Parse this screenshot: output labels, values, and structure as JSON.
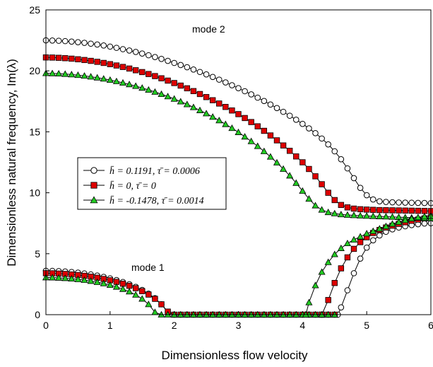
{
  "chart_data": {
    "type": "line",
    "xlabel": "Dimensionless flow velocity",
    "ylabel": "Dimensionless natural frequency, Im(λ)",
    "xlim": [
      0,
      6
    ],
    "ylim": [
      0,
      25
    ],
    "xticks": [
      "0",
      "1",
      "2",
      "3",
      "4",
      "5",
      "6"
    ],
    "yticks": [
      "0",
      "5",
      "10",
      "15",
      "20",
      "25"
    ],
    "grid": false,
    "legend_position": "middle-left",
    "annotations": [
      {
        "text": "mode 2",
        "x": 2.45,
        "y": 22.5
      },
      {
        "text": "mode 1",
        "x": 1.6,
        "y": 3.8
      }
    ],
    "series": [
      {
        "name": "h̄ = 0.1191, τ̄ = 0.0006",
        "marker": "circle",
        "marker_fill": "#ffffff",
        "color": "#000000",
        "mode2": {
          "x": [
            0,
            0.1,
            0.2,
            0.3,
            0.4,
            0.5,
            0.6,
            0.7,
            0.8,
            0.9,
            1.0,
            1.1,
            1.2,
            1.3,
            1.4,
            1.5,
            1.6,
            1.7,
            1.8,
            1.9,
            2.0,
            2.1,
            2.2,
            2.3,
            2.4,
            2.5,
            2.6,
            2.7,
            2.8,
            2.9,
            3.0,
            3.1,
            3.2,
            3.3,
            3.4,
            3.5,
            3.6,
            3.7,
            3.8,
            3.9,
            4.0,
            4.1,
            4.2,
            4.3,
            4.4,
            4.5,
            4.6,
            4.7,
            4.8,
            4.9,
            5.0,
            5.1,
            5.2,
            5.3,
            5.4,
            5.5,
            5.6,
            5.7,
            5.8,
            5.9,
            6.0
          ],
          "y": [
            22.5,
            22.49,
            22.47,
            22.44,
            22.4,
            22.35,
            22.3,
            22.23,
            22.16,
            22.08,
            21.99,
            21.89,
            21.78,
            21.67,
            21.55,
            21.42,
            21.28,
            21.13,
            20.98,
            20.82,
            20.65,
            20.48,
            20.3,
            20.11,
            19.91,
            19.71,
            19.5,
            19.28,
            19.05,
            18.82,
            18.58,
            18.33,
            18.07,
            17.8,
            17.53,
            17.24,
            16.95,
            16.64,
            16.32,
            15.99,
            15.65,
            15.28,
            14.89,
            14.45,
            13.97,
            13.4,
            12.75,
            12.0,
            11.2,
            10.4,
            9.8,
            9.45,
            9.3,
            9.25,
            9.22,
            9.2,
            9.19,
            9.18,
            9.17,
            9.16,
            9.15
          ]
        },
        "mode1": {
          "x": [
            0,
            0.1,
            0.2,
            0.3,
            0.4,
            0.5,
            0.6,
            0.7,
            0.8,
            0.9,
            1.0,
            1.1,
            1.2,
            1.3,
            1.4,
            1.5,
            1.6,
            1.7,
            1.8,
            1.9,
            2.0,
            2.1,
            2.2,
            2.3,
            2.4,
            2.5,
            2.6,
            2.7,
            2.8,
            2.9,
            3.0,
            3.1,
            3.2,
            3.3,
            3.4,
            3.5,
            3.6,
            3.7,
            3.8,
            3.9,
            4.0,
            4.1,
            4.2,
            4.3,
            4.4,
            4.5,
            4.6,
            4.7,
            4.8,
            4.9,
            5.0,
            5.1,
            5.2,
            5.3,
            5.4,
            5.5,
            5.6,
            5.7,
            5.8,
            5.9,
            6.0
          ],
          "y": [
            3.6,
            3.59,
            3.57,
            3.54,
            3.5,
            3.45,
            3.38,
            3.3,
            3.21,
            3.1,
            2.98,
            2.84,
            2.68,
            2.5,
            2.28,
            2.03,
            1.72,
            1.35,
            0.85,
            0.2,
            0,
            0,
            0,
            0,
            0,
            0,
            0,
            0,
            0,
            0,
            0,
            0,
            0,
            0,
            0,
            0,
            0,
            0,
            0,
            0,
            0,
            0,
            0,
            0,
            0,
            0,
            0,
            0,
            0,
            0,
            0,
            0,
            0,
            0,
            0,
            0,
            0,
            0,
            0,
            0,
            0
          ]
        }
      },
      {
        "name": "h̄ = 0, τ̄ = 0",
        "marker": "square",
        "marker_fill": "#dd0000",
        "color": "#000000",
        "mode2": {
          "x": [
            0,
            0.1,
            0.2,
            0.3,
            0.4,
            0.5,
            0.6,
            0.7,
            0.8,
            0.9,
            1.0,
            1.1,
            1.2,
            1.3,
            1.4,
            1.5,
            1.6,
            1.7,
            1.8,
            1.9,
            2.0,
            2.1,
            2.2,
            2.3,
            2.4,
            2.5,
            2.6,
            2.7,
            2.8,
            2.9,
            3.0,
            3.1,
            3.2,
            3.3,
            3.4,
            3.5,
            3.6,
            3.7,
            3.8,
            3.9,
            4.0,
            4.1,
            4.2,
            4.3,
            4.4,
            4.5,
            4.6,
            4.7,
            4.8,
            4.9,
            5.0,
            5.1,
            5.2,
            5.3,
            5.4,
            5.5,
            5.6,
            5.7,
            5.8,
            5.9,
            6.0
          ],
          "y": [
            21.1,
            21.09,
            21.07,
            21.04,
            21.0,
            20.95,
            20.89,
            20.82,
            20.74,
            20.65,
            20.55,
            20.44,
            20.32,
            20.19,
            20.05,
            19.9,
            19.74,
            19.57,
            19.39,
            19.2,
            19.0,
            18.79,
            18.57,
            18.34,
            18.1,
            17.85,
            17.59,
            17.32,
            17.04,
            16.75,
            16.45,
            16.13,
            15.8,
            15.45,
            15.08,
            14.7,
            14.3,
            13.88,
            13.44,
            12.98,
            12.5,
            11.95,
            11.35,
            10.7,
            10.0,
            9.4,
            9.0,
            8.8,
            8.7,
            8.65,
            8.62,
            8.6,
            8.58,
            8.57,
            8.56,
            8.55,
            8.54,
            8.53,
            8.52,
            8.51,
            8.5
          ]
        },
        "mode1": {
          "x": [
            0,
            0.1,
            0.2,
            0.3,
            0.4,
            0.5,
            0.6,
            0.7,
            0.8,
            0.9,
            1.0,
            1.1,
            1.2,
            1.3,
            1.4,
            1.5,
            1.6,
            1.7,
            1.8,
            1.9,
            2.0,
            2.1,
            2.2,
            2.3,
            2.4,
            2.5,
            2.6,
            2.7,
            2.8,
            2.9,
            3.0,
            3.1,
            3.2,
            3.3,
            3.4,
            3.5,
            3.6,
            3.7,
            3.8,
            3.9,
            4.0,
            4.1,
            4.2,
            4.3,
            4.4,
            4.5,
            4.6,
            4.7,
            4.8,
            4.9,
            5.0,
            5.1,
            5.2,
            5.3,
            5.4,
            5.5,
            5.6,
            5.7,
            5.8,
            5.9,
            6.0
          ],
          "y": [
            3.4,
            3.39,
            3.37,
            3.34,
            3.3,
            3.25,
            3.19,
            3.12,
            3.03,
            2.93,
            2.82,
            2.69,
            2.54,
            2.37,
            2.17,
            1.93,
            1.65,
            1.3,
            0.85,
            0.25,
            0,
            0,
            0,
            0,
            0,
            0,
            0,
            0,
            0,
            0,
            0,
            0,
            0,
            0,
            0,
            0,
            0,
            0,
            0,
            0,
            0,
            0,
            0,
            0,
            0,
            0,
            0,
            0,
            0,
            0,
            0,
            0,
            0,
            0,
            0,
            0,
            0,
            0,
            0,
            0,
            0
          ]
        }
      },
      {
        "name": "h̄ = -0.1478, τ̄ = 0.0014",
        "marker": "triangle",
        "marker_fill": "#22cc22",
        "color": "#000000",
        "mode2": {
          "x": [
            0,
            0.1,
            0.2,
            0.3,
            0.4,
            0.5,
            0.6,
            0.7,
            0.8,
            0.9,
            1.0,
            1.1,
            1.2,
            1.3,
            1.4,
            1.5,
            1.6,
            1.7,
            1.8,
            1.9,
            2.0,
            2.1,
            2.2,
            2.3,
            2.4,
            2.5,
            2.6,
            2.7,
            2.8,
            2.9,
            3.0,
            3.1,
            3.2,
            3.3,
            3.4,
            3.5,
            3.6,
            3.7,
            3.8,
            3.9,
            4.0,
            4.1,
            4.2,
            4.3,
            4.4,
            4.5,
            4.6,
            4.7,
            4.8,
            4.9,
            5.0,
            5.1,
            5.2,
            5.3,
            5.4,
            5.5,
            5.6,
            5.7,
            5.8,
            5.9,
            6.0
          ],
          "y": [
            19.8,
            19.79,
            19.77,
            19.74,
            19.7,
            19.65,
            19.59,
            19.52,
            19.44,
            19.35,
            19.25,
            19.14,
            19.02,
            18.89,
            18.75,
            18.6,
            18.44,
            18.27,
            18.09,
            17.9,
            17.7,
            17.48,
            17.25,
            17.01,
            16.76,
            16.5,
            16.22,
            15.93,
            15.62,
            15.3,
            14.96,
            14.6,
            14.22,
            13.82,
            13.4,
            12.95,
            12.47,
            11.95,
            11.4,
            10.8,
            10.15,
            9.5,
            8.95,
            8.6,
            8.4,
            8.3,
            8.22,
            8.18,
            8.15,
            8.12,
            8.1,
            8.08,
            8.06,
            8.04,
            8.02,
            8.0,
            7.98,
            7.96,
            7.94,
            7.92,
            7.9
          ]
        },
        "mode1": {
          "x": [
            0,
            0.1,
            0.2,
            0.3,
            0.4,
            0.5,
            0.6,
            0.7,
            0.8,
            0.9,
            1.0,
            1.1,
            1.2,
            1.3,
            1.4,
            1.5,
            1.6,
            1.7,
            1.8,
            1.9,
            2.0,
            2.1,
            2.2,
            2.3,
            2.4,
            2.5,
            2.6,
            2.7,
            2.8,
            2.9,
            3.0,
            3.1,
            3.2,
            3.3,
            3.4,
            3.5,
            3.6,
            3.7,
            3.8,
            3.9,
            4.0,
            4.1,
            4.2,
            4.3,
            4.4,
            4.5,
            4.6,
            4.7,
            4.8,
            4.9,
            5.0,
            5.1,
            5.2,
            5.3,
            5.4,
            5.5,
            5.6,
            5.7,
            5.8,
            5.9,
            6.0
          ],
          "y": [
            3.05,
            3.04,
            3.02,
            2.99,
            2.95,
            2.9,
            2.84,
            2.76,
            2.67,
            2.56,
            2.43,
            2.28,
            2.1,
            1.89,
            1.63,
            1.3,
            0.85,
            0.2,
            0,
            0,
            0,
            0,
            0,
            0,
            0,
            0,
            0,
            0,
            0,
            0,
            0,
            0,
            0,
            0,
            0,
            0,
            0,
            0,
            0,
            0,
            0,
            0,
            0,
            0,
            0,
            0,
            0,
            0,
            0,
            0,
            0,
            0,
            0,
            0,
            0,
            0,
            0,
            0,
            0,
            0,
            0
          ]
        }
      }
    ],
    "mode2_merge": {
      "note_hidden": ""
    },
    "mode1_rising": [
      {
        "x": [
          4.55,
          4.6,
          4.7,
          4.8,
          4.9,
          5.0,
          5.1,
          5.2,
          5.3,
          5.4,
          5.5,
          5.6,
          5.7,
          5.8,
          5.9,
          6.0
        ],
        "y": [
          0,
          0.6,
          2.0,
          3.4,
          4.6,
          5.5,
          6.1,
          6.5,
          6.8,
          7.0,
          7.15,
          7.25,
          7.35,
          7.42,
          7.48,
          7.5
        ]
      },
      {
        "x": [
          4.3,
          4.4,
          4.5,
          4.6,
          4.7,
          4.8,
          4.9,
          5.0,
          5.1,
          5.2,
          5.3,
          5.4,
          5.5,
          5.6,
          5.7,
          5.8,
          5.9,
          6.0
        ],
        "y": [
          0,
          1.2,
          2.6,
          3.8,
          4.7,
          5.4,
          5.95,
          6.35,
          6.7,
          6.95,
          7.15,
          7.3,
          7.45,
          7.58,
          7.7,
          7.8,
          7.9,
          7.98
        ]
      },
      {
        "x": [
          4.05,
          4.1,
          4.2,
          4.3,
          4.4,
          4.5,
          4.6,
          4.7,
          4.8,
          4.9,
          5.0,
          5.1,
          5.2,
          5.3,
          5.4,
          5.5,
          5.6,
          5.7,
          5.8,
          5.9,
          6.0
        ],
        "y": [
          0,
          1.0,
          2.4,
          3.5,
          4.3,
          4.95,
          5.45,
          5.85,
          6.15,
          6.4,
          6.65,
          6.85,
          7.05,
          7.25,
          7.45,
          7.6,
          7.75,
          7.88,
          7.98,
          8.05,
          8.1
        ]
      }
    ]
  }
}
